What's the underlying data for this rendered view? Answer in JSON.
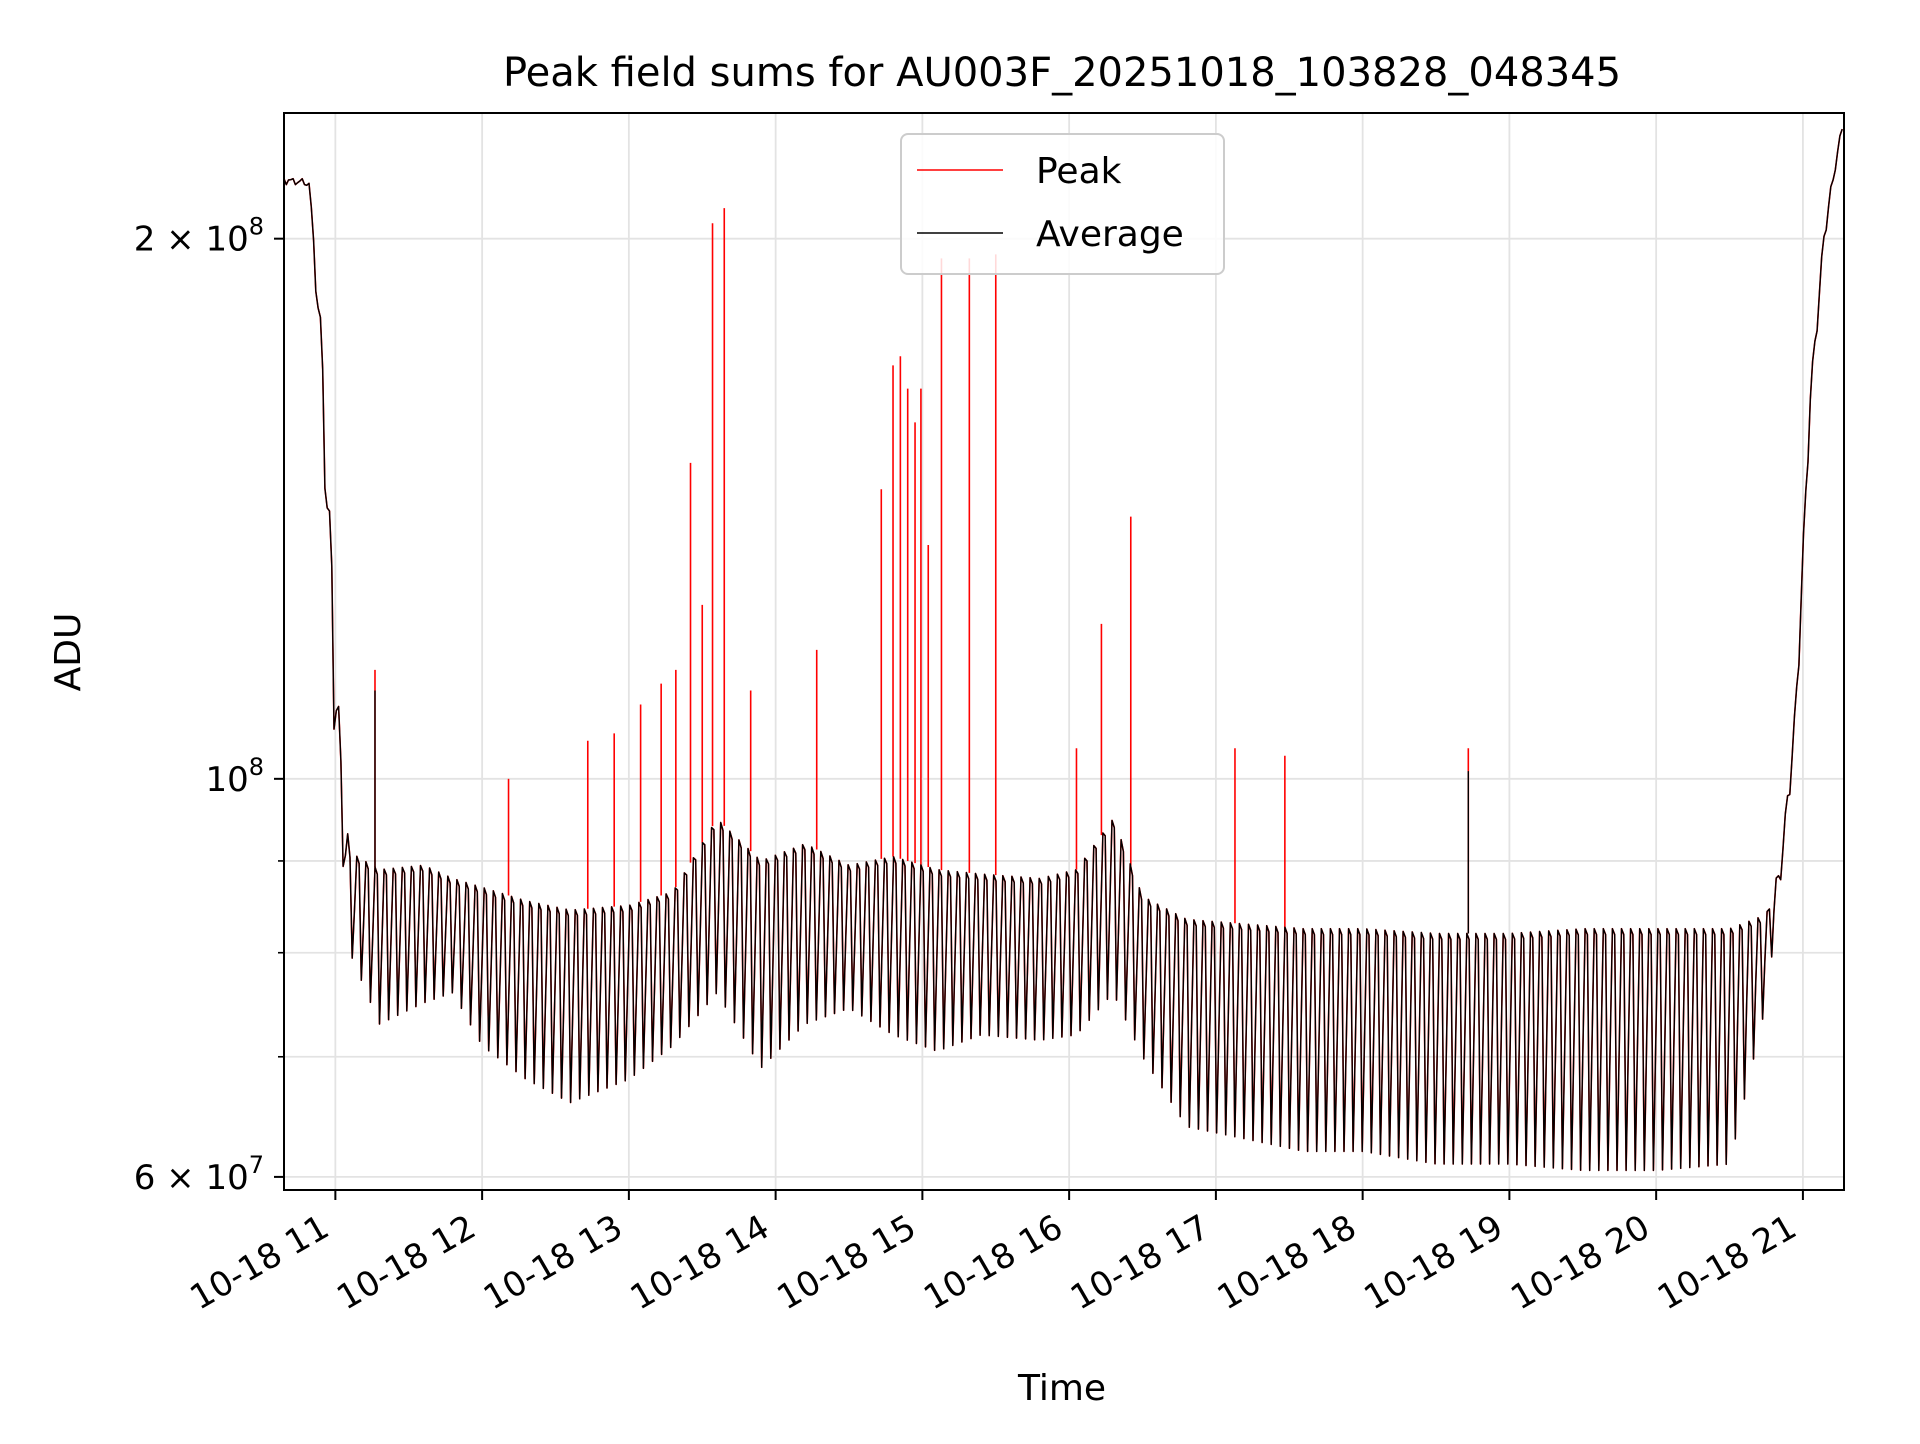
{
  "chart_data": {
    "type": "line",
    "title": "Peak field sums for AU003F_20251018_103828_048345",
    "xlabel": "Time",
    "ylabel": "ADU",
    "y_scale": "log",
    "ylim": [
      59000000,
      235000000
    ],
    "xlim_hours": [
      10.65,
      21.28
    ],
    "x_ticks": [
      {
        "hour": 11,
        "label": "10-18 11"
      },
      {
        "hour": 12,
        "label": "10-18 12"
      },
      {
        "hour": 13,
        "label": "10-18 13"
      },
      {
        "hour": 14,
        "label": "10-18 14"
      },
      {
        "hour": 15,
        "label": "10-18 15"
      },
      {
        "hour": 16,
        "label": "10-18 16"
      },
      {
        "hour": 17,
        "label": "10-18 17"
      },
      {
        "hour": 18,
        "label": "10-18 18"
      },
      {
        "hour": 19,
        "label": "10-18 19"
      },
      {
        "hour": 20,
        "label": "10-18 20"
      },
      {
        "hour": 21,
        "label": "10-18 21"
      }
    ],
    "y_major_ticks": [
      {
        "value": 60000000,
        "mantissa": "6",
        "label": "6 × 10^7"
      },
      {
        "value": 100000000,
        "mantissa": "",
        "label": "10^8"
      },
      {
        "value": 200000000,
        "mantissa": "2",
        "label": "2 × 10^8"
      }
    ],
    "y_minor_ticks": [
      70000000,
      80000000,
      90000000
    ],
    "grid": true,
    "legend": {
      "position": "upper center"
    },
    "series": [
      {
        "name": "Peak",
        "color": "#ff0000",
        "envelope_hours": [
          10.65,
          10.82,
          10.9,
          10.98,
          11.05,
          11.1,
          11.3,
          11.6,
          11.8,
          12.0,
          12.3,
          12.6,
          13.0,
          13.3,
          13.6,
          13.9,
          14.2,
          14.5,
          14.8,
          15.1,
          15.4,
          15.8,
          16.05,
          16.3,
          16.5,
          16.8,
          17.2,
          17.6,
          18.0,
          18.5,
          19.0,
          19.5,
          20.0,
          20.5,
          20.75,
          20.85,
          20.95,
          21.05,
          21.15,
          21.28
        ],
        "envelope_upper": [
          216000000,
          216000000,
          180000000,
          130000000,
          98000000,
          91000000,
          89000000,
          89500000,
          88000000,
          87000000,
          85500000,
          84500000,
          85000000,
          86500000,
          95000000,
          90000000,
          92000000,
          89500000,
          90500000,
          89000000,
          88500000,
          88000000,
          89000000,
          95000000,
          86000000,
          83500000,
          83000000,
          82500000,
          82500000,
          82000000,
          82000000,
          82500000,
          82500000,
          82500000,
          84000000,
          90000000,
          110000000,
          165000000,
          205000000,
          235000000
        ],
        "envelope_lower": [
          216000000,
          214000000,
          170000000,
          110000000,
          90000000,
          80000000,
          73000000,
          75000000,
          76000000,
          71000000,
          68000000,
          66000000,
          68000000,
          71000000,
          76000000,
          69000000,
          73000000,
          74500000,
          72000000,
          70500000,
          72000000,
          71500000,
          72000000,
          76000000,
          70000000,
          64000000,
          63000000,
          62000000,
          62000000,
          61000000,
          61000000,
          60500000,
          60500000,
          61000000,
          75000000,
          88000000,
          105000000,
          160000000,
          200000000,
          235000000
        ],
        "spikes": [
          {
            "hour": 11.27,
            "value": 115000000
          },
          {
            "hour": 12.18,
            "value": 100000000
          },
          {
            "hour": 12.72,
            "value": 105000000
          },
          {
            "hour": 12.9,
            "value": 106000000
          },
          {
            "hour": 13.08,
            "value": 110000000
          },
          {
            "hour": 13.22,
            "value": 113000000
          },
          {
            "hour": 13.32,
            "value": 115000000
          },
          {
            "hour": 13.42,
            "value": 150000000
          },
          {
            "hour": 13.5,
            "value": 125000000
          },
          {
            "hour": 13.57,
            "value": 204000000
          },
          {
            "hour": 13.65,
            "value": 208000000
          },
          {
            "hour": 13.83,
            "value": 112000000
          },
          {
            "hour": 14.28,
            "value": 118000000
          },
          {
            "hour": 14.72,
            "value": 145000000
          },
          {
            "hour": 14.8,
            "value": 170000000
          },
          {
            "hour": 14.85,
            "value": 172000000
          },
          {
            "hour": 14.9,
            "value": 165000000
          },
          {
            "hour": 14.95,
            "value": 158000000
          },
          {
            "hour": 14.99,
            "value": 165000000
          },
          {
            "hour": 15.04,
            "value": 135000000
          },
          {
            "hour": 15.13,
            "value": 195000000
          },
          {
            "hour": 15.32,
            "value": 195000000
          },
          {
            "hour": 15.5,
            "value": 196000000
          },
          {
            "hour": 16.05,
            "value": 104000000
          },
          {
            "hour": 16.22,
            "value": 122000000
          },
          {
            "hour": 16.42,
            "value": 140000000
          },
          {
            "hour": 17.13,
            "value": 104000000
          },
          {
            "hour": 17.47,
            "value": 103000000
          },
          {
            "hour": 18.72,
            "value": 104000000
          }
        ]
      },
      {
        "name": "Average",
        "color": "#000000",
        "envelope_hours": [
          10.65,
          10.82,
          10.9,
          10.98,
          11.05,
          11.1,
          11.3,
          11.6,
          11.8,
          12.0,
          12.3,
          12.6,
          13.0,
          13.3,
          13.6,
          13.9,
          14.2,
          14.5,
          14.8,
          15.1,
          15.4,
          15.8,
          16.05,
          16.3,
          16.5,
          16.8,
          17.2,
          17.6,
          18.0,
          18.5,
          19.0,
          19.5,
          20.0,
          20.5,
          20.75,
          20.85,
          20.95,
          21.05,
          21.15,
          21.28
        ],
        "envelope_upper": [
          216000000,
          216000000,
          180000000,
          130000000,
          98000000,
          91000000,
          89000000,
          89500000,
          88000000,
          87000000,
          85500000,
          84500000,
          85000000,
          86500000,
          95000000,
          90000000,
          92000000,
          89500000,
          90500000,
          89000000,
          88500000,
          88000000,
          89000000,
          95000000,
          86000000,
          83500000,
          83000000,
          82500000,
          82500000,
          82000000,
          82000000,
          82500000,
          82500000,
          82500000,
          84000000,
          90000000,
          110000000,
          165000000,
          205000000,
          235000000
        ],
        "envelope_lower": [
          216000000,
          214000000,
          170000000,
          110000000,
          90000000,
          80000000,
          73000000,
          75000000,
          76000000,
          71000000,
          68000000,
          66000000,
          68000000,
          71000000,
          76000000,
          69000000,
          73000000,
          74500000,
          72000000,
          70500000,
          72000000,
          71500000,
          72000000,
          76000000,
          70000000,
          64000000,
          63000000,
          62000000,
          62000000,
          61000000,
          61000000,
          60500000,
          60500000,
          61000000,
          75000000,
          88000000,
          105000000,
          160000000,
          200000000,
          235000000
        ],
        "spikes": [
          {
            "hour": 11.27,
            "value": 112000000
          },
          {
            "hour": 18.72,
            "value": 101000000
          }
        ]
      }
    ]
  }
}
